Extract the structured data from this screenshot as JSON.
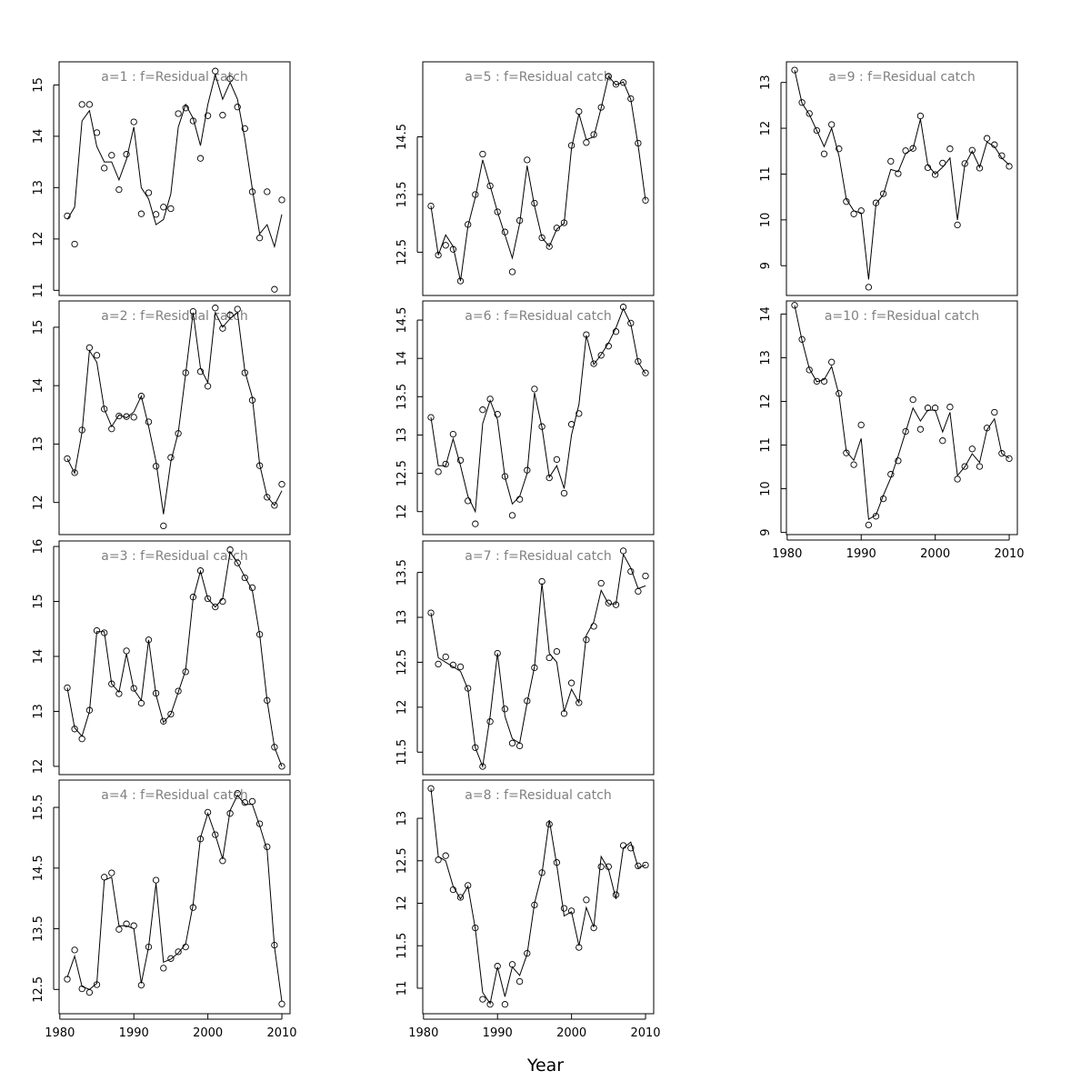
{
  "figure": {
    "xlabel": "Year"
  },
  "chart_data": [
    {
      "type": "line",
      "panel": "a=1",
      "title": "a=1  :  f=Residual catch",
      "xlim": [
        1979.9,
        2011.1
      ],
      "ylim": [
        10.9,
        15.45
      ],
      "xticks": [],
      "yticks": [
        11,
        12,
        13,
        14,
        15
      ],
      "x": [
        1981,
        1982,
        1983,
        1984,
        1985,
        1986,
        1987,
        1988,
        1989,
        1990,
        1991,
        1992,
        1993,
        1994,
        1995,
        1996,
        1997,
        1998,
        1999,
        2000,
        2001,
        2002,
        2003,
        2004,
        2005,
        2006,
        2007,
        2008,
        2009,
        2010
      ],
      "observed": [
        12.45,
        11.9,
        14.62,
        14.62,
        14.07,
        13.38,
        13.63,
        12.96,
        13.65,
        14.28,
        12.49,
        12.9,
        12.48,
        12.62,
        12.59,
        14.44,
        14.55,
        14.3,
        13.57,
        14.4,
        15.27,
        14.41,
        15.12,
        14.57,
        14.15,
        12.92,
        12.02,
        12.92,
        11.02,
        12.76
      ],
      "fitted": [
        12.38,
        12.62,
        14.3,
        14.5,
        13.8,
        13.5,
        13.5,
        13.15,
        13.55,
        14.18,
        13.0,
        12.78,
        12.28,
        12.38,
        12.88,
        14.18,
        14.62,
        14.35,
        13.82,
        14.62,
        15.2,
        14.72,
        15.05,
        14.72,
        13.95,
        12.98,
        12.1,
        12.28,
        11.85,
        12.48
      ]
    },
    {
      "type": "line",
      "panel": "a=2",
      "title": "a=2  :  f=Residual catch",
      "xlim": [
        1979.9,
        2011.1
      ],
      "ylim": [
        11.45,
        15.45
      ],
      "xticks": [],
      "yticks": [
        12,
        13,
        14,
        15
      ],
      "x": [
        1981,
        1982,
        1983,
        1984,
        1985,
        1986,
        1987,
        1988,
        1989,
        1990,
        1991,
        1992,
        1993,
        1994,
        1995,
        1996,
        1997,
        1998,
        1999,
        2000,
        2001,
        2002,
        2003,
        2004,
        2005,
        2006,
        2007,
        2008,
        2009,
        2010
      ],
      "observed": [
        12.75,
        12.51,
        13.24,
        14.65,
        14.52,
        13.6,
        13.26,
        13.48,
        13.47,
        13.46,
        13.82,
        13.38,
        12.62,
        11.6,
        12.77,
        13.18,
        14.22,
        15.27,
        14.24,
        13.99,
        15.33,
        14.98,
        15.21,
        15.31,
        14.22,
        13.75,
        12.63,
        12.09,
        11.95,
        12.31
      ],
      "fitted": [
        12.75,
        12.5,
        13.2,
        14.6,
        14.4,
        13.6,
        13.3,
        13.5,
        13.45,
        13.55,
        13.82,
        13.3,
        12.7,
        11.8,
        12.7,
        13.2,
        14.2,
        15.25,
        14.3,
        14.05,
        15.25,
        15.0,
        15.15,
        15.25,
        14.25,
        13.8,
        12.65,
        12.1,
        11.95,
        12.2
      ]
    },
    {
      "type": "line",
      "panel": "a=3",
      "title": "a=3  :  f=Residual catch",
      "xlim": [
        1979.9,
        2011.1
      ],
      "ylim": [
        11.85,
        16.1
      ],
      "xticks": [],
      "yticks": [
        12,
        13,
        14,
        15,
        16
      ],
      "x": [
        1981,
        1982,
        1983,
        1984,
        1985,
        1986,
        1987,
        1988,
        1989,
        1990,
        1991,
        1992,
        1993,
        1994,
        1995,
        1996,
        1997,
        1998,
        1999,
        2000,
        2001,
        2002,
        2003,
        2004,
        2005,
        2006,
        2007,
        2008,
        2009,
        2010
      ],
      "observed": [
        13.43,
        12.68,
        12.5,
        13.02,
        14.47,
        14.43,
        13.5,
        13.32,
        14.1,
        13.42,
        13.15,
        14.3,
        13.33,
        12.82,
        12.95,
        13.37,
        13.72,
        15.08,
        15.56,
        15.05,
        14.9,
        15.0,
        15.94,
        15.7,
        15.43,
        15.25,
        14.4,
        13.2,
        12.35,
        12.0
      ],
      "fitted": [
        13.43,
        12.7,
        12.55,
        13.0,
        14.45,
        14.45,
        13.5,
        13.35,
        14.05,
        13.4,
        13.2,
        14.3,
        13.3,
        12.8,
        12.95,
        13.35,
        13.75,
        15.05,
        15.55,
        15.05,
        14.9,
        15.05,
        15.9,
        15.7,
        15.45,
        15.2,
        14.4,
        13.2,
        12.35,
        12.0
      ]
    },
    {
      "type": "line",
      "panel": "a=4",
      "title": "a=4  :  f=Residual catch",
      "xlim": [
        1979.9,
        2011.1
      ],
      "ylim": [
        12.1,
        15.95
      ],
      "xticks": [
        1980,
        1990,
        2000,
        2010
      ],
      "yticks": [
        12.5,
        13.5,
        14.5,
        15.5
      ],
      "x": [
        1981,
        1982,
        1983,
        1984,
        1985,
        1986,
        1987,
        1988,
        1989,
        1990,
        1991,
        1992,
        1993,
        1994,
        1995,
        1996,
        1997,
        1998,
        1999,
        2000,
        2001,
        2002,
        2003,
        2004,
        2005,
        2006,
        2007,
        2008,
        2009,
        2010
      ],
      "observed": [
        12.67,
        13.15,
        12.51,
        12.45,
        12.58,
        14.35,
        14.42,
        13.49,
        13.58,
        13.55,
        12.57,
        13.2,
        14.3,
        12.85,
        13.01,
        13.12,
        13.2,
        13.85,
        14.98,
        15.42,
        15.05,
        14.62,
        15.4,
        15.73,
        15.58,
        15.6,
        15.23,
        14.85,
        13.23,
        12.26
      ],
      "fitted": [
        12.7,
        13.05,
        12.55,
        12.5,
        12.6,
        14.3,
        14.35,
        13.55,
        13.55,
        13.5,
        12.6,
        13.2,
        14.25,
        12.95,
        13.0,
        13.1,
        13.25,
        13.9,
        15.0,
        15.4,
        15.05,
        14.65,
        15.45,
        15.7,
        15.55,
        15.55,
        15.2,
        14.8,
        13.2,
        12.3
      ]
    },
    {
      "type": "line",
      "panel": "a=5",
      "title": "a=5  :  f=Residual catch",
      "xlim": [
        1979.9,
        2011.1
      ],
      "ylim": [
        11.75,
        15.8
      ],
      "xticks": [],
      "yticks": [
        12.5,
        13.5,
        14.5
      ],
      "x": [
        1981,
        1982,
        1983,
        1984,
        1985,
        1986,
        1987,
        1988,
        1989,
        1990,
        1991,
        1992,
        1993,
        1994,
        1995,
        1996,
        1997,
        1998,
        1999,
        2000,
        2001,
        2002,
        2003,
        2004,
        2005,
        2006,
        2007,
        2008,
        2009,
        2010
      ],
      "observed": [
        13.3,
        12.45,
        12.62,
        12.55,
        12.0,
        12.98,
        13.5,
        14.2,
        13.65,
        13.2,
        12.85,
        12.16,
        13.05,
        14.1,
        13.35,
        12.75,
        12.6,
        12.92,
        13.01,
        14.35,
        14.94,
        14.4,
        14.54,
        15.01,
        15.55,
        15.41,
        15.44,
        15.16,
        14.39,
        13.4
      ],
      "fitted": [
        13.3,
        12.45,
        12.8,
        12.6,
        12.0,
        12.95,
        13.45,
        14.1,
        13.65,
        13.2,
        12.8,
        12.4,
        13.0,
        14.0,
        13.3,
        12.75,
        12.6,
        12.9,
        13.0,
        14.3,
        14.9,
        14.45,
        14.5,
        15.0,
        15.55,
        15.4,
        15.45,
        15.15,
        14.35,
        13.4
      ]
    },
    {
      "type": "line",
      "panel": "a=6",
      "title": "a=6  :  f=Residual catch",
      "xlim": [
        1979.9,
        2011.1
      ],
      "ylim": [
        11.7,
        14.75
      ],
      "xticks": [],
      "yticks": [
        12.0,
        12.5,
        13.0,
        13.5,
        14.0,
        14.5
      ],
      "x": [
        1981,
        1982,
        1983,
        1984,
        1985,
        1986,
        1987,
        1988,
        1989,
        1990,
        1991,
        1992,
        1993,
        1994,
        1995,
        1996,
        1997,
        1998,
        1999,
        2000,
        2001,
        2002,
        2003,
        2004,
        2005,
        2006,
        2007,
        2008,
        2009,
        2010
      ],
      "observed": [
        13.23,
        12.52,
        12.62,
        13.01,
        12.67,
        12.14,
        11.84,
        13.33,
        13.47,
        13.27,
        12.46,
        11.95,
        12.16,
        12.54,
        13.6,
        13.11,
        12.44,
        12.68,
        12.24,
        13.14,
        13.28,
        14.31,
        13.93,
        14.04,
        14.16,
        14.35,
        14.67,
        14.46,
        13.96,
        13.81
      ],
      "fitted": [
        13.23,
        12.6,
        12.6,
        12.95,
        12.6,
        12.2,
        12.0,
        13.15,
        13.45,
        13.2,
        12.45,
        12.1,
        12.2,
        12.5,
        13.55,
        13.1,
        12.45,
        12.6,
        12.3,
        13.0,
        13.4,
        14.3,
        13.92,
        14.05,
        14.2,
        14.4,
        14.65,
        14.45,
        13.95,
        13.8
      ]
    },
    {
      "type": "line",
      "panel": "a=7",
      "title": "a=7  :  f=Residual catch",
      "xlim": [
        1979.9,
        2011.1
      ],
      "ylim": [
        11.25,
        13.85
      ],
      "xticks": [],
      "yticks": [
        11.5,
        12.0,
        12.5,
        13.0,
        13.5
      ],
      "x": [
        1981,
        1982,
        1983,
        1984,
        1985,
        1986,
        1987,
        1988,
        1989,
        1990,
        1991,
        1992,
        1993,
        1994,
        1995,
        1996,
        1997,
        1998,
        1999,
        2000,
        2001,
        2002,
        2003,
        2004,
        2005,
        2006,
        2007,
        2008,
        2009,
        2010
      ],
      "observed": [
        13.05,
        12.48,
        12.56,
        12.47,
        12.45,
        12.21,
        11.55,
        11.34,
        11.84,
        12.6,
        11.98,
        11.6,
        11.57,
        12.07,
        12.44,
        13.4,
        12.55,
        12.62,
        11.93,
        12.27,
        12.05,
        12.75,
        12.9,
        13.38,
        13.16,
        13.14,
        13.74,
        13.51,
        13.29,
        13.46
      ],
      "fitted": [
        13.05,
        12.55,
        12.5,
        12.45,
        12.4,
        12.2,
        11.55,
        11.34,
        11.9,
        12.6,
        11.9,
        11.65,
        11.6,
        12.05,
        12.45,
        13.38,
        12.6,
        12.5,
        11.95,
        12.2,
        12.05,
        12.8,
        12.95,
        13.3,
        13.15,
        13.15,
        13.7,
        13.55,
        13.32,
        13.35
      ]
    },
    {
      "type": "line",
      "panel": "a=8",
      "title": "a=8  :  f=Residual catch",
      "xlim": [
        1979.9,
        2011.1
      ],
      "ylim": [
        10.7,
        13.45
      ],
      "xticks": [
        1980,
        1990,
        2000,
        2010
      ],
      "yticks": [
        11.0,
        11.5,
        12.0,
        12.5,
        13.0
      ],
      "x": [
        1981,
        1982,
        1983,
        1984,
        1985,
        1986,
        1987,
        1988,
        1989,
        1990,
        1991,
        1992,
        1993,
        1994,
        1995,
        1996,
        1997,
        1998,
        1999,
        2000,
        2001,
        2002,
        2003,
        2004,
        2005,
        2006,
        2007,
        2008,
        2009,
        2010
      ],
      "observed": [
        13.35,
        12.51,
        12.56,
        12.16,
        12.07,
        12.21,
        11.71,
        10.87,
        10.81,
        11.26,
        10.81,
        11.28,
        11.08,
        11.41,
        11.98,
        12.36,
        12.93,
        12.48,
        11.94,
        11.91,
        11.48,
        12.04,
        11.71,
        12.43,
        12.43,
        12.1,
        12.68,
        12.65,
        12.44,
        12.45
      ],
      "fitted": [
        13.35,
        12.55,
        12.5,
        12.2,
        12.05,
        12.2,
        11.7,
        10.95,
        10.82,
        11.25,
        10.9,
        11.25,
        11.15,
        11.4,
        12.0,
        12.35,
        12.98,
        12.45,
        11.85,
        11.9,
        11.5,
        11.95,
        11.72,
        12.55,
        12.4,
        12.05,
        12.65,
        12.72,
        12.42,
        12.45
      ]
    },
    {
      "type": "line",
      "panel": "a=9",
      "title": "a=9  :  f=Residual catch",
      "xlim": [
        1979.9,
        2011.1
      ],
      "ylim": [
        8.35,
        13.45
      ],
      "xticks": [],
      "yticks": [
        9,
        10,
        11,
        12,
        13
      ],
      "x": [
        1981,
        1982,
        1983,
        1984,
        1985,
        1986,
        1987,
        1988,
        1989,
        1990,
        1991,
        1992,
        1993,
        1994,
        1995,
        1996,
        1997,
        1998,
        1999,
        2000,
        2001,
        2002,
        2003,
        2004,
        2005,
        2006,
        2007,
        2008,
        2009,
        2010
      ],
      "observed": [
        13.27,
        12.56,
        12.32,
        11.95,
        11.44,
        12.08,
        11.55,
        10.4,
        10.13,
        10.2,
        8.53,
        10.37,
        10.57,
        11.28,
        11.01,
        11.51,
        11.56,
        12.27,
        11.14,
        10.99,
        11.24,
        11.55,
        9.89,
        11.23,
        11.52,
        11.13,
        11.78,
        11.64,
        11.4,
        11.17
      ],
      "fitted": [
        13.27,
        12.55,
        12.3,
        11.95,
        11.6,
        12.0,
        11.4,
        10.45,
        10.2,
        10.15,
        8.7,
        10.35,
        10.55,
        11.1,
        11.05,
        11.45,
        11.55,
        12.2,
        11.2,
        11.0,
        11.15,
        11.35,
        10.0,
        11.2,
        11.5,
        11.15,
        11.7,
        11.6,
        11.35,
        11.2
      ]
    },
    {
      "type": "line",
      "panel": "a=10",
      "title": "a=10  :  f=Residual catch",
      "xlim": [
        1979.9,
        2011.1
      ],
      "ylim": [
        8.95,
        14.3
      ],
      "xticks": [
        1980,
        1990,
        2000,
        2010
      ],
      "yticks": [
        9,
        10,
        11,
        12,
        13,
        14
      ],
      "x": [
        1981,
        1982,
        1983,
        1984,
        1985,
        1986,
        1987,
        1988,
        1989,
        1990,
        1991,
        1992,
        1993,
        1994,
        1995,
        1996,
        1997,
        1998,
        1999,
        2000,
        2001,
        2002,
        2003,
        2004,
        2005,
        2006,
        2007,
        2008,
        2009,
        2010
      ],
      "observed": [
        14.2,
        13.42,
        12.72,
        12.46,
        12.46,
        12.9,
        12.18,
        10.82,
        10.55,
        11.46,
        9.17,
        9.37,
        9.77,
        10.33,
        10.64,
        11.31,
        12.04,
        11.36,
        11.85,
        11.85,
        11.1,
        11.87,
        10.22,
        10.51,
        10.91,
        10.51,
        11.39,
        11.75,
        10.81,
        10.69
      ],
      "fitted": [
        14.2,
        13.4,
        12.75,
        12.45,
        12.5,
        12.8,
        12.15,
        10.85,
        10.65,
        11.15,
        9.3,
        9.4,
        9.85,
        10.25,
        10.75,
        11.3,
        11.85,
        11.55,
        11.8,
        11.8,
        11.3,
        11.75,
        10.3,
        10.5,
        10.8,
        10.6,
        11.35,
        11.6,
        10.8,
        10.7
      ]
    }
  ]
}
